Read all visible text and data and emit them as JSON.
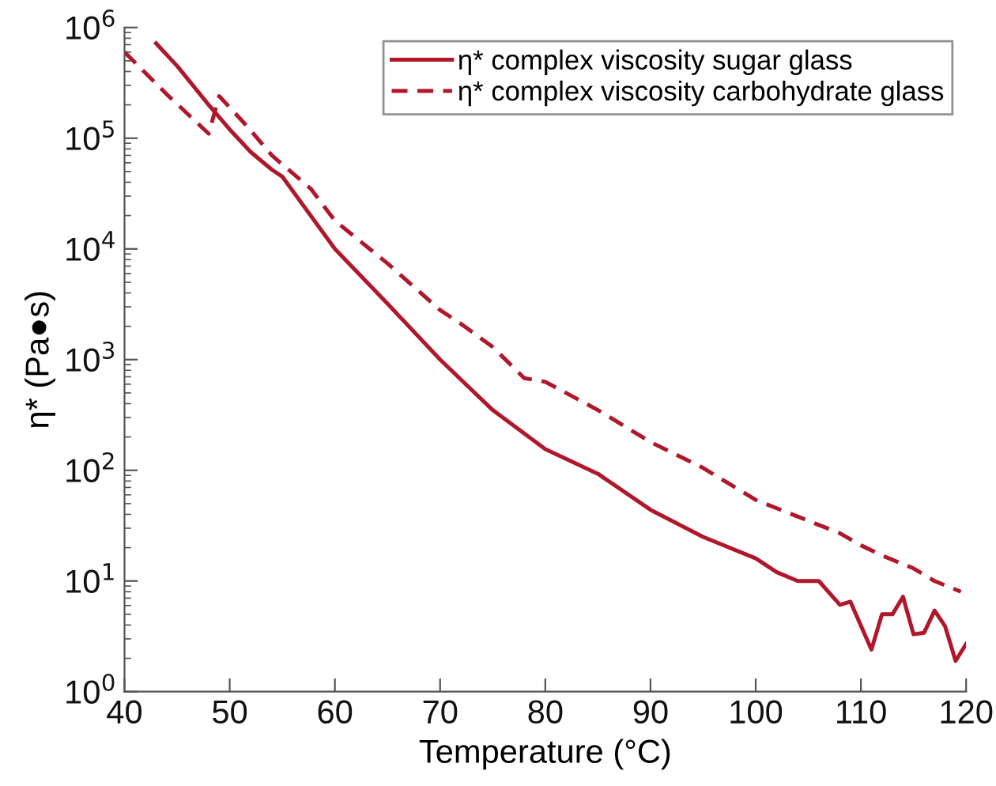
{
  "chart_data": {
    "type": "line",
    "xlabel": "Temperature (°C)",
    "ylabel": "η* (Pa●s)",
    "log": "y",
    "xlim": [
      40,
      120
    ],
    "xticks": [
      40,
      50,
      60,
      70,
      80,
      90,
      100,
      110,
      120
    ],
    "ylim": [
      1,
      1000000
    ],
    "yticks": [
      {
        "value": 1,
        "label": "10$^{0}$"
      },
      {
        "value": 10,
        "label": "10$^{1}$"
      },
      {
        "value": 100,
        "label": "10$^{2}$"
      },
      {
        "value": 1000,
        "label": "10$^{3}$"
      },
      {
        "value": 10000,
        "label": "10$^{4}$"
      },
      {
        "value": 100000,
        "label": "10$^{5}$"
      },
      {
        "value": 1000000,
        "label": "10$^{6}$"
      }
    ],
    "grid": false,
    "legend": "top right",
    "marker": "none",
    "series": [
      {
        "name": "η* complex viscosity sugar glass",
        "color": "#b0172a",
        "line_style": "solid",
        "x": [
          43,
          45,
          48,
          50,
          52,
          54,
          55,
          60,
          65,
          70,
          75,
          80,
          85,
          90,
          95,
          100,
          102,
          104,
          106,
          108,
          109,
          111,
          112,
          113,
          114,
          115,
          116,
          117,
          118,
          119,
          120
        ],
        "values": [
          720000,
          450000,
          200000,
          120000,
          75000,
          52000,
          45000,
          10000,
          3200,
          1000,
          350,
          155,
          93,
          44,
          25,
          16,
          12,
          10,
          10,
          6.1,
          6.5,
          2.4,
          5,
          5,
          7.2,
          3.3,
          3.4,
          5.4,
          3.9,
          1.9,
          2.7
        ]
      },
      {
        "name": "η* complex viscosity carbohydrate glass",
        "color": "#b0172a",
        "line_style": "dashed",
        "x": [
          40,
          44,
          48,
          49,
          51.6,
          54,
          57.7,
          60,
          65,
          70,
          72,
          75,
          78,
          80,
          85,
          90,
          95,
          100,
          105,
          108,
          110,
          112,
          115,
          117,
          119.5
        ],
        "values": [
          600000,
          250000,
          110000,
          240000,
          130000,
          70000,
          35000,
          18000,
          7400,
          2800,
          2100,
          1300,
          680,
          630,
          350,
          180,
          105,
          54,
          35,
          27,
          21,
          17,
          13,
          10,
          8
        ]
      }
    ]
  }
}
